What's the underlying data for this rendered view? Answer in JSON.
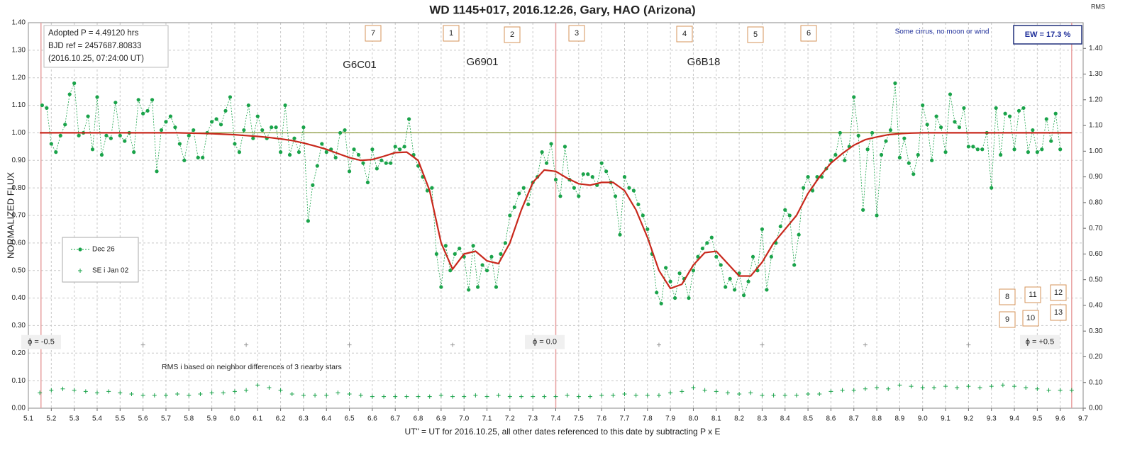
{
  "chart_data": {
    "type": "scatter",
    "title": "WD 1145+017, 2016.12.26, Gary, HAO (Arizona)",
    "xlabel": "UT\" = UT for 2016.10.25, all other dates referenced to this date by subtracting P x E",
    "ylabel": "NORMALIZED  FLUX",
    "y2label": "RMS",
    "xlim": [
      5.1,
      9.7
    ],
    "ylim": [
      0,
      1.4
    ],
    "y2lim": [
      0,
      1.5
    ],
    "grid": true,
    "legend": "left",
    "xticks": [
      5.1,
      5.2,
      5.3,
      5.4,
      5.5,
      5.6,
      5.7,
      5.8,
      5.9,
      {
        "value": 6,
        "label": "6.0"
      },
      6.1,
      6.2,
      6.3,
      6.4,
      6.5,
      6.6,
      6.7,
      6.8,
      6.9,
      {
        "value": 7,
        "label": "7.0"
      },
      7.1,
      7.2,
      7.3,
      7.4,
      7.5,
      7.6,
      7.7,
      7.8,
      7.9,
      {
        "value": 8,
        "label": "8.0"
      },
      8.1,
      8.2,
      8.3,
      8.4,
      8.5,
      8.6,
      8.7,
      8.8,
      8.9,
      {
        "value": 9,
        "label": "9.0"
      },
      9.1,
      9.2,
      9.3,
      9.4,
      9.5,
      9.6,
      9.7
    ],
    "yticks": [
      {
        "value": 0,
        "label": "0.00"
      },
      {
        "value": 0.1,
        "label": "0.10"
      },
      {
        "value": 0.2,
        "label": "0.20"
      },
      {
        "value": 0.3,
        "label": "0.30"
      },
      {
        "value": 0.4,
        "label": "0.40"
      },
      {
        "value": 0.5,
        "label": "0.50"
      },
      {
        "value": 0.6,
        "label": "0.60"
      },
      {
        "value": 0.7,
        "label": "0.70"
      },
      {
        "value": 0.8,
        "label": "0.80"
      },
      {
        "value": 0.9,
        "label": "0.90"
      },
      {
        "value": 1,
        "label": "1.00"
      },
      {
        "value": 1.1,
        "label": "1.10"
      },
      {
        "value": 1.2,
        "label": "1.20"
      },
      {
        "value": 1.3,
        "label": "1.30"
      },
      {
        "value": 1.4,
        "label": "1.40"
      }
    ],
    "y2ticks": [
      {
        "value": 0,
        "label": "0.00"
      },
      {
        "value": 0.1,
        "label": "0.10"
      },
      {
        "value": 0.2,
        "label": "0.20"
      },
      {
        "value": 0.3,
        "label": "0.30"
      },
      {
        "value": 0.4,
        "label": "0.40"
      },
      {
        "value": 0.5,
        "label": "0.50"
      },
      {
        "value": 0.6,
        "label": "0.60"
      },
      {
        "value": 0.7,
        "label": "0.70"
      },
      {
        "value": 0.8,
        "label": "0.80"
      },
      {
        "value": 0.9,
        "label": "0.90"
      },
      {
        "value": 1,
        "label": "1.00"
      },
      {
        "value": 1.1,
        "label": "1.10"
      },
      {
        "value": 1.2,
        "label": "1.20"
      },
      {
        "value": 1.3,
        "label": "1.30"
      },
      {
        "value": 1.4,
        "label": "1.40"
      }
    ],
    "series": [
      {
        "name": "Dec 26",
        "color": "#1aa34a",
        "marker": "dot",
        "x": [
          5.16,
          5.18,
          5.2,
          5.22,
          5.24,
          5.26,
          5.28,
          5.3,
          5.32,
          5.34,
          5.36,
          5.38,
          5.4,
          5.42,
          5.44,
          5.46,
          5.48,
          5.5,
          5.52,
          5.54,
          5.56,
          5.58,
          5.6,
          5.62,
          5.64,
          5.66,
          5.68,
          5.7,
          5.72,
          5.74,
          5.76,
          5.78,
          5.8,
          5.82,
          5.84,
          5.86,
          5.88,
          5.9,
          5.92,
          5.94,
          5.96,
          5.98,
          6.0,
          6.02,
          6.04,
          6.06,
          6.08,
          6.1,
          6.12,
          6.14,
          6.16,
          6.18,
          6.2,
          6.22,
          6.24,
          6.26,
          6.28,
          6.3,
          6.32,
          6.34,
          6.36,
          6.38,
          6.4,
          6.42,
          6.44,
          6.46,
          6.48,
          6.5,
          6.52,
          6.54,
          6.56,
          6.58,
          6.6,
          6.62,
          6.64,
          6.66,
          6.68,
          6.7,
          6.72,
          6.74,
          6.76,
          6.78,
          6.8,
          6.82,
          6.84,
          6.86,
          6.88,
          6.9,
          6.92,
          6.94,
          6.96,
          6.98,
          7.0,
          7.02,
          7.04,
          7.06,
          7.08,
          7.1,
          7.12,
          7.14,
          7.16,
          7.18,
          7.2,
          7.22,
          7.24,
          7.26,
          7.28,
          7.3,
          7.32,
          7.34,
          7.36,
          7.38,
          7.4,
          7.42,
          7.44,
          7.46,
          7.48,
          7.5,
          7.52,
          7.54,
          7.56,
          7.58,
          7.6,
          7.62,
          7.64,
          7.66,
          7.68,
          7.7,
          7.72,
          7.74,
          7.76,
          7.78,
          7.8,
          7.82,
          7.84,
          7.86,
          7.88,
          7.9,
          7.92,
          7.94,
          7.96,
          7.98,
          8.0,
          8.02,
          8.04,
          8.06,
          8.08,
          8.1,
          8.12,
          8.14,
          8.16,
          8.18,
          8.2,
          8.22,
          8.24,
          8.26,
          8.28,
          8.3,
          8.32,
          8.34,
          8.36,
          8.38,
          8.4,
          8.42,
          8.44,
          8.46,
          8.48,
          8.5,
          8.52,
          8.54,
          8.56,
          8.58,
          8.6,
          8.62,
          8.64,
          8.66,
          8.68,
          8.7,
          8.72,
          8.74,
          8.76,
          8.78,
          8.8,
          8.82,
          8.84,
          8.86,
          8.88,
          8.9,
          8.92,
          8.94,
          8.96,
          8.98,
          9.0,
          9.02,
          9.04,
          9.06,
          9.08,
          9.1,
          9.12,
          9.14,
          9.16,
          9.18,
          9.2,
          9.22,
          9.24,
          9.26,
          9.28,
          9.3,
          9.32,
          9.34,
          9.36,
          9.38,
          9.4,
          9.42,
          9.44,
          9.46,
          9.48,
          9.5,
          9.52,
          9.54,
          9.56,
          9.58,
          9.6
        ],
        "values": [
          1.1,
          1.09,
          0.96,
          0.93,
          0.99,
          1.03,
          1.14,
          1.18,
          0.99,
          1.0,
          1.06,
          0.94,
          1.13,
          0.92,
          0.99,
          0.98,
          1.11,
          0.99,
          0.97,
          1.0,
          0.93,
          1.12,
          1.07,
          1.08,
          1.12,
          0.86,
          1.01,
          1.04,
          1.06,
          1.02,
          0.96,
          0.9,
          0.99,
          1.01,
          0.91,
          0.91,
          1.0,
          1.04,
          1.05,
          1.03,
          1.08,
          1.13,
          0.96,
          0.93,
          1.01,
          1.1,
          0.98,
          1.06,
          1.01,
          0.98,
          1.02,
          1.02,
          0.93,
          1.1,
          0.92,
          0.98,
          0.93,
          1.02,
          0.68,
          0.81,
          0.88,
          0.96,
          0.93,
          0.94,
          0.91,
          1.0,
          1.01,
          0.86,
          0.94,
          0.92,
          0.89,
          0.82,
          0.94,
          0.87,
          0.9,
          0.89,
          0.89,
          0.95,
          0.94,
          0.95,
          1.05,
          0.92,
          0.88,
          0.84,
          0.79,
          0.8,
          0.56,
          0.44,
          0.59,
          0.5,
          0.56,
          0.58,
          0.55,
          0.43,
          0.59,
          0.44,
          0.52,
          0.5,
          0.55,
          0.44,
          0.56,
          0.6,
          0.7,
          0.73,
          0.78,
          0.8,
          0.74,
          0.82,
          0.84,
          0.93,
          0.89,
          0.96,
          0.83,
          0.77,
          0.95,
          0.83,
          0.8,
          0.77,
          0.85,
          0.85,
          0.84,
          0.81,
          0.89,
          0.86,
          0.82,
          0.77,
          0.63,
          0.84,
          0.8,
          0.79,
          0.74,
          0.7,
          0.65,
          0.56,
          0.42,
          0.38,
          0.51,
          0.46,
          0.4,
          0.49,
          0.47,
          0.4,
          0.5,
          0.55,
          0.58,
          0.6,
          0.62,
          0.55,
          0.52,
          0.44,
          0.47,
          0.43,
          0.49,
          0.41,
          0.46,
          0.55,
          0.5,
          0.65,
          0.43,
          0.55,
          0.6,
          0.66,
          0.72,
          0.7,
          0.52,
          0.63,
          0.8,
          0.84,
          0.79,
          0.84,
          0.84,
          0.87,
          0.9,
          0.92,
          1.0,
          0.9,
          0.95,
          1.13,
          0.99,
          0.72,
          0.94,
          1.0,
          0.7,
          0.92,
          0.97,
          1.01,
          1.18,
          0.91,
          0.98,
          0.89,
          0.85,
          0.92,
          1.1,
          1.03,
          0.9,
          1.06,
          1.02,
          0.93,
          1.14,
          1.04,
          1.02,
          1.09,
          0.95,
          0.95,
          0.94,
          0.94,
          1.0,
          0.8,
          1.09,
          0.92,
          1.07,
          1.06,
          0.94,
          1.08,
          1.09,
          0.93,
          1.01,
          0.93,
          0.94,
          1.05,
          0.97,
          1.07,
          0.94
        ]
      },
      {
        "name": "SE i Jan 02",
        "color": "#1aa34a",
        "marker": "plus",
        "axis": "y2",
        "x": [
          5.15,
          5.2,
          5.25,
          5.3,
          5.35,
          5.4,
          5.45,
          5.5,
          5.55,
          5.6,
          5.65,
          5.7,
          5.75,
          5.8,
          5.85,
          5.9,
          5.95,
          6.0,
          6.05,
          6.1,
          6.15,
          6.2,
          6.25,
          6.3,
          6.35,
          6.4,
          6.45,
          6.5,
          6.55,
          6.6,
          6.65,
          6.7,
          6.75,
          6.8,
          6.85,
          6.9,
          6.95,
          7.0,
          7.05,
          7.1,
          7.15,
          7.2,
          7.25,
          7.3,
          7.35,
          7.4,
          7.45,
          7.5,
          7.55,
          7.6,
          7.65,
          7.7,
          7.75,
          7.8,
          7.85,
          7.9,
          7.95,
          8.0,
          8.05,
          8.1,
          8.15,
          8.2,
          8.25,
          8.3,
          8.35,
          8.4,
          8.45,
          8.5,
          8.55,
          8.6,
          8.65,
          8.7,
          8.75,
          8.8,
          8.85,
          8.9,
          8.95,
          9.0,
          9.05,
          9.1,
          9.15,
          9.2,
          9.25,
          9.3,
          9.35,
          9.4,
          9.45,
          9.5,
          9.55,
          9.6,
          9.65
        ],
        "values": [
          0.06,
          0.07,
          0.075,
          0.07,
          0.065,
          0.06,
          0.065,
          0.06,
          0.055,
          0.05,
          0.05,
          0.05,
          0.055,
          0.05,
          0.055,
          0.06,
          0.06,
          0.065,
          0.07,
          0.09,
          0.08,
          0.07,
          0.055,
          0.05,
          0.05,
          0.05,
          0.06,
          0.055,
          0.05,
          0.045,
          0.045,
          0.045,
          0.045,
          0.045,
          0.045,
          0.05,
          0.045,
          0.045,
          0.05,
          0.045,
          0.05,
          0.045,
          0.045,
          0.045,
          0.045,
          0.045,
          0.05,
          0.045,
          0.045,
          0.05,
          0.05,
          0.055,
          0.05,
          0.05,
          0.05,
          0.06,
          0.065,
          0.08,
          0.07,
          0.065,
          0.06,
          0.055,
          0.06,
          0.05,
          0.05,
          0.05,
          0.05,
          0.055,
          0.055,
          0.065,
          0.07,
          0.07,
          0.075,
          0.08,
          0.075,
          0.09,
          0.085,
          0.08,
          0.08,
          0.085,
          0.08,
          0.085,
          0.08,
          0.085,
          0.09,
          0.085,
          0.08,
          0.075,
          0.07,
          0.07,
          0.07
        ]
      }
    ],
    "fit": {
      "color": "#c8281c",
      "x": [
        5.15,
        5.2,
        5.25,
        5.3,
        5.35,
        5.4,
        5.45,
        5.5,
        5.55,
        5.6,
        5.65,
        5.7,
        5.75,
        5.8,
        5.85,
        5.9,
        5.95,
        6.0,
        6.05,
        6.1,
        6.15,
        6.2,
        6.25,
        6.3,
        6.35,
        6.4,
        6.45,
        6.5,
        6.55,
        6.6,
        6.65,
        6.7,
        6.75,
        6.8,
        6.85,
        6.9,
        6.95,
        7.0,
        7.05,
        7.1,
        7.15,
        7.2,
        7.25,
        7.3,
        7.35,
        7.4,
        7.45,
        7.5,
        7.55,
        7.6,
        7.65,
        7.7,
        7.75,
        7.8,
        7.85,
        7.9,
        7.95,
        8.0,
        8.05,
        8.1,
        8.15,
        8.2,
        8.25,
        8.3,
        8.35,
        8.4,
        8.45,
        8.5,
        8.55,
        8.6,
        8.65,
        8.7,
        8.75,
        8.8,
        8.85,
        8.9,
        8.95,
        9.0,
        9.05,
        9.1,
        9.15,
        9.2,
        9.25,
        9.3,
        9.35,
        9.4,
        9.45,
        9.5,
        9.55,
        9.6,
        9.65
      ],
      "values": [
        1,
        1,
        1,
        1,
        1,
        1,
        1,
        1,
        1,
        1,
        1,
        1,
        1,
        0.999,
        0.998,
        0.997,
        0.995,
        0.993,
        0.99,
        0.987,
        0.983,
        0.978,
        0.972,
        0.963,
        0.952,
        0.94,
        0.925,
        0.91,
        0.9,
        0.903,
        0.915,
        0.928,
        0.93,
        0.9,
        0.79,
        0.6,
        0.505,
        0.56,
        0.57,
        0.535,
        0.525,
        0.6,
        0.72,
        0.82,
        0.865,
        0.86,
        0.835,
        0.815,
        0.81,
        0.82,
        0.82,
        0.79,
        0.72,
        0.62,
        0.5,
        0.435,
        0.45,
        0.52,
        0.565,
        0.57,
        0.525,
        0.48,
        0.48,
        0.53,
        0.6,
        0.65,
        0.7,
        0.78,
        0.84,
        0.89,
        0.925,
        0.955,
        0.975,
        0.985,
        0.993,
        0.997,
        0.999,
        1,
        1,
        1,
        1,
        1,
        1,
        1,
        1,
        1,
        1,
        1,
        1,
        1,
        1
      ]
    },
    "reference_line": {
      "value": 1,
      "from": 5.15,
      "to": 9.65,
      "color": "#7a8a20"
    },
    "phase_lines": {
      "x": [
        5.155,
        7.4,
        9.65
      ],
      "labels": [
        "ϕ = -0.5",
        "ϕ = 0.0",
        "ϕ = +0.5"
      ],
      "label_y": 0.24,
      "color": "#e8a0a0"
    },
    "gray_marks": {
      "x": [
        5.6,
        6.05,
        6.5,
        6.95,
        7.85,
        8.3,
        8.75,
        9.2
      ],
      "values": [
        0.23,
        0.23,
        0.23,
        0.23,
        0.23,
        0.23,
        0.23,
        0.23
      ],
      "color": "#999999"
    },
    "info": [
      "Adopted P = 4.49120  hrs",
      "BJD ref = 2457687.80833",
      "(2016.10.25,  07:24:00  UT)"
    ],
    "boxes": [
      "7",
      "1",
      "2",
      "3",
      "4",
      "5",
      "6",
      "8",
      "9",
      "10",
      "11",
      "12",
      "13"
    ],
    "groups": [
      "G6C01",
      "G6901",
      "G6B18"
    ],
    "note": "Some cirrus, no moon or wind",
    "ew": "EW = 17.3 %",
    "rms_note": "RMS i based on neighbor differences of 3 nearby stars"
  }
}
